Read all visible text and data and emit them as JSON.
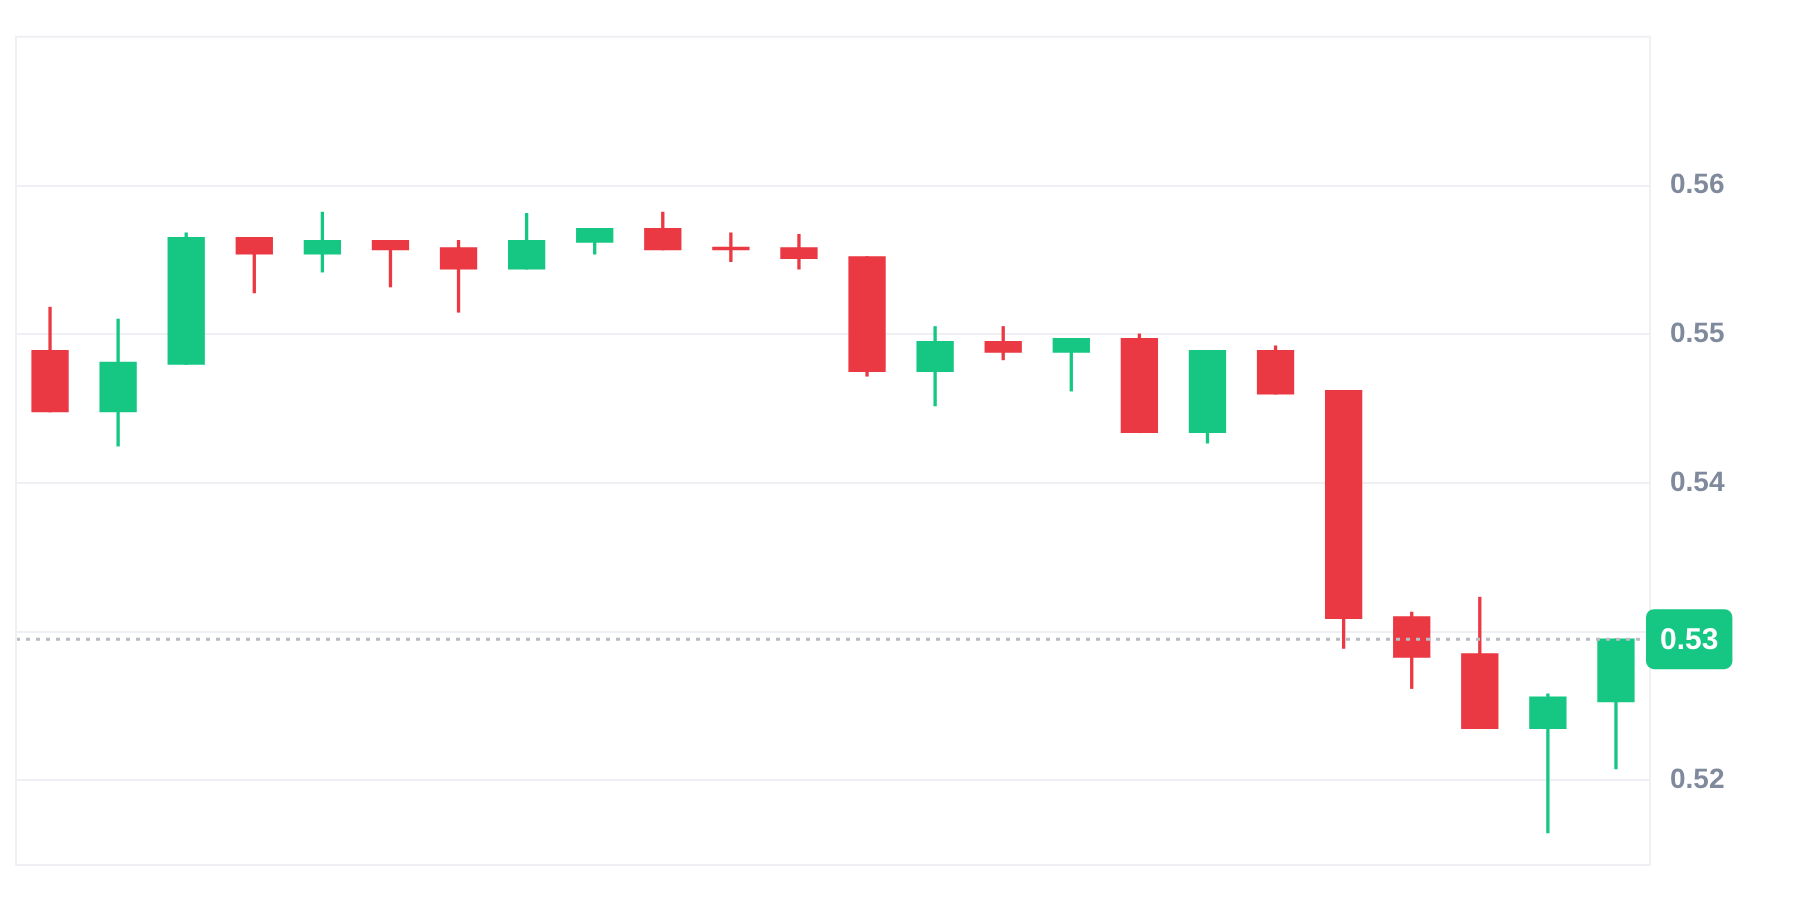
{
  "chart_data": {
    "type": "candlestick",
    "categories": [
      null,
      null,
      null,
      null,
      null,
      null,
      null,
      null,
      null,
      null,
      null,
      null,
      null,
      null,
      null,
      null,
      null,
      null,
      null,
      null,
      null,
      null,
      null,
      null
    ],
    "ohlc": [
      [
        0.5489,
        0.5518,
        0.5448,
        0.5448
      ],
      [
        0.5448,
        0.551,
        0.5425,
        0.5481
      ],
      [
        0.548,
        0.5568,
        0.548,
        0.5565
      ],
      [
        0.5565,
        0.5565,
        0.5528,
        0.5554
      ],
      [
        0.5554,
        0.5582,
        0.5542,
        0.5563
      ],
      [
        0.5563,
        0.5563,
        0.5532,
        0.5557
      ],
      [
        0.5558,
        0.5563,
        0.5515,
        0.5544
      ],
      [
        0.5544,
        0.5581,
        0.5544,
        0.5563
      ],
      [
        0.5562,
        0.5571,
        0.5554,
        0.5571
      ],
      [
        0.5571,
        0.5582,
        0.5557,
        0.5557
      ],
      [
        0.5558,
        0.5568,
        0.5549,
        0.5557
      ],
      [
        0.5558,
        0.5567,
        0.5544,
        0.5551
      ],
      [
        0.5552,
        0.5552,
        0.5472,
        0.5475
      ],
      [
        0.5475,
        0.5505,
        0.5452,
        0.5495
      ],
      [
        0.5495,
        0.5505,
        0.5483,
        0.5488
      ],
      [
        0.5488,
        0.5497,
        0.5462,
        0.5497
      ],
      [
        0.5497,
        0.55,
        0.5434,
        0.5434
      ],
      [
        0.5434,
        0.5489,
        0.5427,
        0.5489
      ],
      [
        0.5489,
        0.5492,
        0.546,
        0.546
      ],
      [
        0.5462,
        0.5462,
        0.5289,
        0.5309
      ],
      [
        0.531,
        0.5313,
        0.5262,
        0.5283
      ],
      [
        0.5285,
        0.5323,
        0.5235,
        0.5235
      ],
      [
        0.5235,
        0.5258,
        0.5165,
        0.5256
      ],
      [
        0.5253,
        0.5295,
        0.5208,
        0.5295
      ]
    ],
    "colors": [
      "#ea3943",
      "#16c784",
      "#16c784",
      "#ea3943",
      "#16c784",
      "#ea3943",
      "#ea3943",
      "#16c784",
      "#16c784",
      "#ea3943",
      "#ea3943",
      "#ea3943",
      "#ea3943",
      "#16c784",
      "#ea3943",
      "#16c784",
      "#ea3943",
      "#16c784",
      "#ea3943",
      "#ea3943",
      "#ea3943",
      "#ea3943",
      "#16c784",
      "#16c784"
    ],
    "ylim": [
      0.5143,
      0.57
    ],
    "yticks": [
      0.52,
      {
        "value": 0.53,
        "label": null
      },
      0.54,
      0.55,
      0.56
    ],
    "grid": "y",
    "tick_labels": "y",
    "ref_lines": [
      {
        "axis": "y",
        "value": 0.5295,
        "label": "0.53",
        "color": "#b8bcc4",
        "line_style": "dotted"
      }
    ]
  }
}
